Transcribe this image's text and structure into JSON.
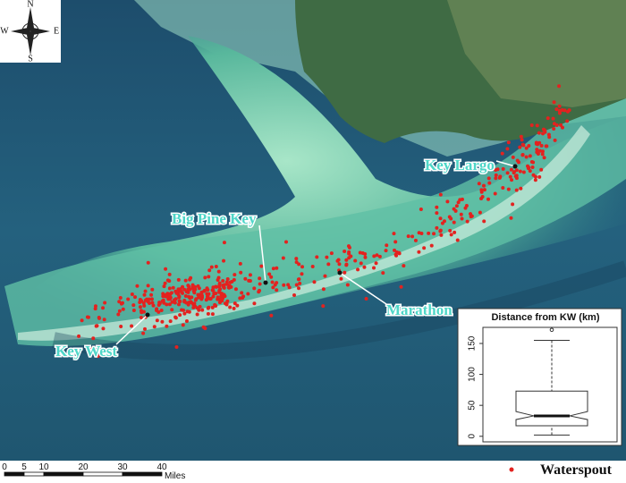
{
  "map": {
    "compass": {
      "N": "N",
      "S": "S",
      "E": "E",
      "W": "W"
    },
    "places": [
      {
        "label": "Key Largo"
      },
      {
        "label": "Big Pine Key"
      },
      {
        "label": "Marathon"
      },
      {
        "label": "Key West"
      }
    ],
    "scale_bar": {
      "ticks": [
        0,
        5,
        10,
        20,
        30,
        40
      ],
      "unit": "Miles"
    },
    "legend": {
      "label": "Waterspout",
      "color": "#e3221f"
    }
  },
  "chart_data": {
    "type": "box",
    "title": "Distance from KW (km)",
    "ylim": [
      -9,
      176
    ],
    "yticks": [
      0,
      50,
      100,
      150
    ],
    "whisker_low": 2,
    "q1": 17,
    "notch_low": 27,
    "median": 33,
    "notch_high": 40,
    "q3": 73,
    "whisker_high": 155,
    "outliers": [
      172
    ]
  }
}
